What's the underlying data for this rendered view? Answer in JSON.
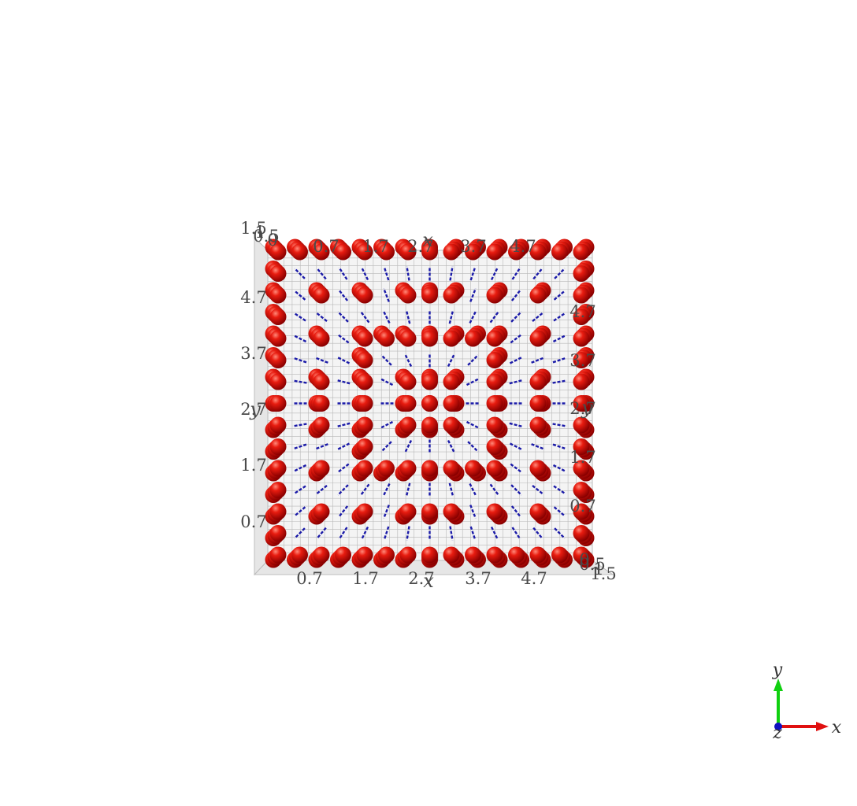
{
  "scene": {
    "ticks": [
      "0.7",
      "1.7",
      "2.7",
      "3.7",
      "4.7"
    ],
    "z_ticks_top": [
      "1.5",
      "1",
      "0.5",
      "0"
    ],
    "z_ticks_bottom": [
      "1.5",
      "1",
      "0.5",
      "0"
    ],
    "x_axis_label": "x",
    "y_axis_label": "y",
    "sphere_color": "#d40000",
    "segment_color": "#1a1aa8",
    "grid_color": "#b8b8b8",
    "lattice_size": 15,
    "lattice_min": 0,
    "lattice_max": 5.4
  },
  "triad": {
    "x_label": "x",
    "y_label": "y",
    "z_label": "z",
    "x_color": "#e01010",
    "y_color": "#10d010",
    "z_color": "#1010c0"
  }
}
